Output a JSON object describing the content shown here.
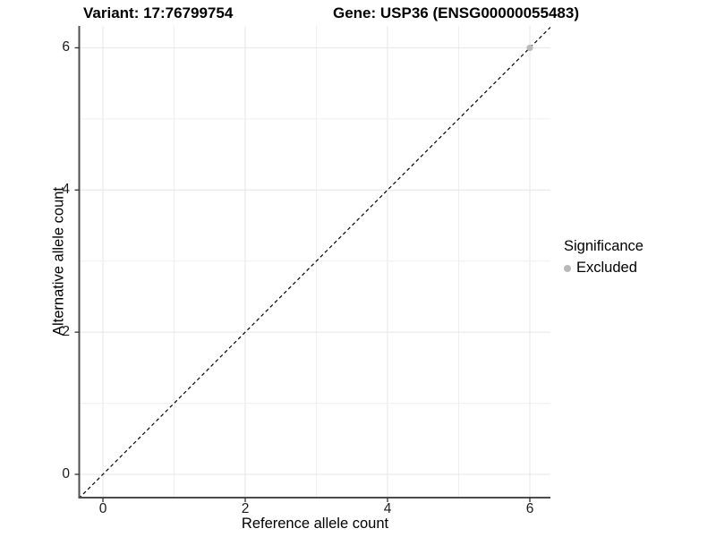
{
  "title": {
    "variant": "Variant: 17:76799754",
    "gene": "Gene: USP36 (ENSG00000055483)"
  },
  "axes": {
    "x_label": "Reference allele count",
    "y_label": "Alternative allele count"
  },
  "legend": {
    "title": "Significance",
    "items": [
      {
        "label": "Excluded",
        "color": "#b9b9b9"
      }
    ]
  },
  "colors": {
    "grid_major": "#e6e6e6",
    "grid_minor": "#efefef",
    "axis_line": "#4d4d4d",
    "tick_mark": "#333333",
    "dashed_line": "#000000",
    "point_excluded": "#b9b9b9"
  },
  "chart_data": {
    "type": "scatter",
    "title": "Variant: 17:76799754   Gene: USP36 (ENSG00000055483)",
    "xlabel": "Reference allele count",
    "ylabel": "Alternative allele count",
    "xlim": [
      -0.34,
      6.29
    ],
    "ylim": [
      -0.33,
      6.31
    ],
    "x_ticks": [
      0,
      2,
      4,
      6
    ],
    "y_ticks": [
      0,
      2,
      4,
      6
    ],
    "grid_lines_x": [
      0,
      1,
      2,
      3,
      4,
      5,
      6
    ],
    "grid_lines_y": [
      0,
      1,
      2,
      3,
      4,
      5,
      6
    ],
    "grid": "on",
    "legend_position": "right",
    "series": [
      {
        "name": "Excluded",
        "color": "#b9b9b9",
        "points": [
          {
            "x": 6,
            "y": 6
          }
        ]
      }
    ],
    "reference_line": {
      "style": "dashed",
      "slope": 1,
      "intercept": 0,
      "color": "#000000"
    }
  }
}
